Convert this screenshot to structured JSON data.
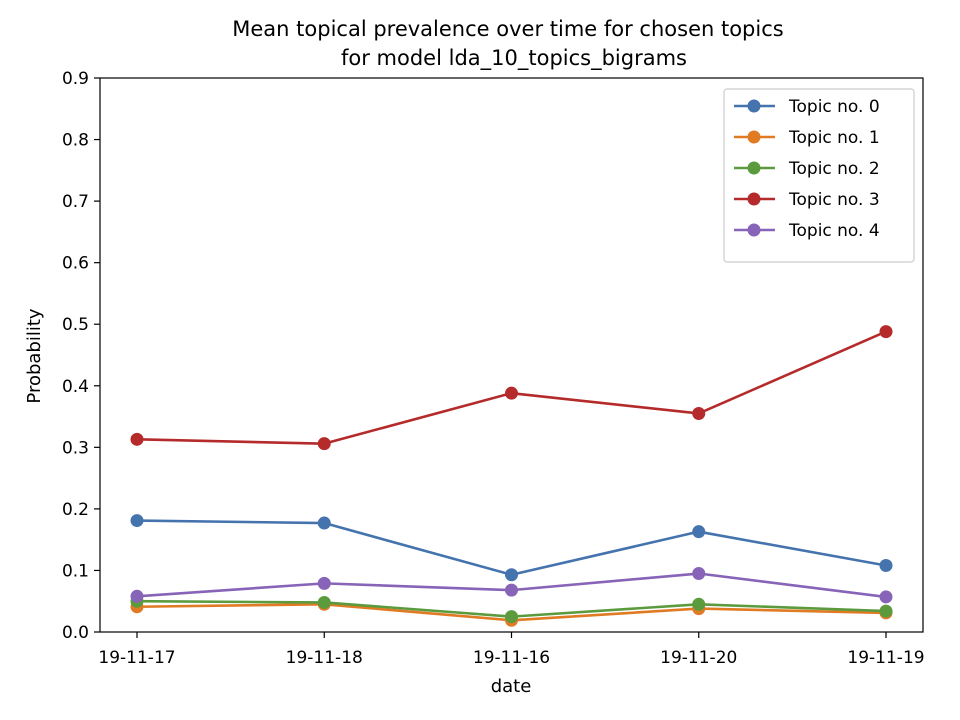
{
  "chart_data": {
    "type": "line",
    "title": "Mean topical prevalence over time for chosen topics",
    "subtitle": "for model lda_10_topics_bigrams",
    "xlabel": "date",
    "ylabel": "Probability",
    "categories": [
      "19-11-17",
      "19-11-18",
      "19-11-16",
      "19-11-20",
      "19-11-19"
    ],
    "ylim": [
      0,
      0.9
    ],
    "yticks": [
      "0.0",
      "0.1",
      "0.2",
      "0.3",
      "0.4",
      "0.5",
      "0.6",
      "0.7",
      "0.8",
      "0.9"
    ],
    "grid": false,
    "legend_position": "top-right",
    "series": [
      {
        "name": "Topic no. 0",
        "color": "#4473ae",
        "values": [
          0.181,
          0.177,
          0.093,
          0.163,
          0.108
        ]
      },
      {
        "name": "Topic no. 1",
        "color": "#e07b24",
        "values": [
          0.041,
          0.045,
          0.019,
          0.038,
          0.031
        ]
      },
      {
        "name": "Topic no. 2",
        "color": "#5b9b3e",
        "values": [
          0.05,
          0.048,
          0.025,
          0.045,
          0.034
        ]
      },
      {
        "name": "Topic no. 3",
        "color": "#b52b2b",
        "values": [
          0.313,
          0.306,
          0.388,
          0.355,
          0.488
        ]
      },
      {
        "name": "Topic no. 4",
        "color": "#8764b8",
        "values": [
          0.058,
          0.079,
          0.068,
          0.095,
          0.057
        ]
      }
    ]
  }
}
